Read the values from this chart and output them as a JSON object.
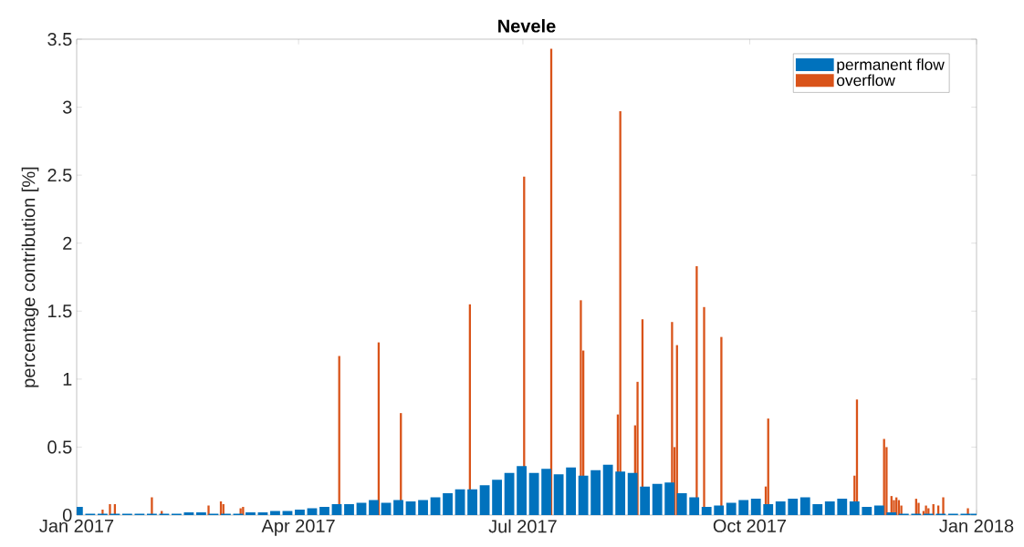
{
  "chart_data": {
    "type": "bar",
    "title": "Nevele",
    "ylabel": "percentage contribution [%]",
    "xlim": [
      "2017-01-01",
      "2018-01-01"
    ],
    "xticks": [
      {
        "value": "2017-01-01",
        "label": "Jan 2017"
      },
      {
        "value": "2017-04-01",
        "label": "Apr 2017"
      },
      {
        "value": "2017-07-01",
        "label": "Jul 2017"
      },
      {
        "value": "2017-10-01",
        "label": "Oct 2017"
      },
      {
        "value": "2018-01-01",
        "label": "Jan 2018"
      }
    ],
    "ylim": [
      0,
      3.5
    ],
    "yticks": [
      0,
      0.5,
      1,
      1.5,
      2,
      2.5,
      3,
      3.5
    ],
    "legend": "top right",
    "grid": false,
    "series": [
      {
        "name": "permanent flow",
        "color": "#0072bd",
        "x": [
          "2017-01-01",
          "2017-01-06",
          "2017-01-11",
          "2017-01-16",
          "2017-01-21",
          "2017-01-26",
          "2017-01-31",
          "2017-02-05",
          "2017-02-10",
          "2017-02-15",
          "2017-02-20",
          "2017-02-25",
          "2017-03-02",
          "2017-03-07",
          "2017-03-12",
          "2017-03-17",
          "2017-03-22",
          "2017-03-27",
          "2017-04-01",
          "2017-04-06",
          "2017-04-11",
          "2017-04-16",
          "2017-04-21",
          "2017-04-26",
          "2017-05-01",
          "2017-05-06",
          "2017-05-11",
          "2017-05-16",
          "2017-05-21",
          "2017-05-26",
          "2017-05-31",
          "2017-06-05",
          "2017-06-10",
          "2017-06-15",
          "2017-06-20",
          "2017-06-25",
          "2017-06-30",
          "2017-07-05",
          "2017-07-10",
          "2017-07-15",
          "2017-07-20",
          "2017-07-25",
          "2017-07-30",
          "2017-08-04",
          "2017-08-09",
          "2017-08-14",
          "2017-08-19",
          "2017-08-24",
          "2017-08-29",
          "2017-09-03",
          "2017-09-08",
          "2017-09-13",
          "2017-09-18",
          "2017-09-23",
          "2017-09-28",
          "2017-10-03",
          "2017-10-08",
          "2017-10-13",
          "2017-10-18",
          "2017-10-23",
          "2017-10-28",
          "2017-11-02",
          "2017-11-07",
          "2017-11-12",
          "2017-11-17",
          "2017-11-22",
          "2017-11-27",
          "2017-12-02",
          "2017-12-07",
          "2017-12-12",
          "2017-12-17",
          "2017-12-22",
          "2017-12-27",
          "2017-12-31"
        ],
        "values": [
          0.06,
          0.01,
          0.01,
          0.01,
          0.01,
          0.01,
          0.01,
          0.01,
          0.01,
          0.02,
          0.02,
          0.01,
          0.01,
          0.01,
          0.02,
          0.02,
          0.03,
          0.03,
          0.04,
          0.05,
          0.06,
          0.08,
          0.08,
          0.09,
          0.11,
          0.09,
          0.11,
          0.1,
          0.11,
          0.13,
          0.16,
          0.19,
          0.19,
          0.22,
          0.26,
          0.31,
          0.36,
          0.31,
          0.34,
          0.3,
          0.35,
          0.29,
          0.33,
          0.37,
          0.32,
          0.31,
          0.21,
          0.23,
          0.24,
          0.16,
          0.13,
          0.06,
          0.07,
          0.09,
          0.11,
          0.12,
          0.08,
          0.1,
          0.12,
          0.13,
          0.08,
          0.1,
          0.12,
          0.1,
          0.06,
          0.07,
          0.02,
          0.01,
          0.01,
          0.01,
          0.01,
          0.01,
          0.01,
          0.01
        ]
      },
      {
        "name": "overflow",
        "color": "#d95319",
        "x": [
          "2017-01-11",
          "2017-01-14",
          "2017-01-16",
          "2017-01-31",
          "2017-02-04",
          "2017-02-23",
          "2017-02-28",
          "2017-03-01",
          "2017-03-08",
          "2017-03-09",
          "2017-04-17",
          "2017-05-03",
          "2017-05-12",
          "2017-06-09",
          "2017-07-01",
          "2017-07-12",
          "2017-07-24",
          "2017-07-25",
          "2017-08-08",
          "2017-08-09",
          "2017-08-15",
          "2017-08-16",
          "2017-08-18",
          "2017-08-30",
          "2017-08-31",
          "2017-09-01",
          "2017-09-09",
          "2017-09-12",
          "2017-09-19",
          "2017-10-07",
          "2017-10-08",
          "2017-11-12",
          "2017-11-13",
          "2017-11-24",
          "2017-11-25",
          "2017-11-27",
          "2017-11-28",
          "2017-11-29",
          "2017-11-30",
          "2017-12-01",
          "2017-12-07",
          "2017-12-08",
          "2017-12-10",
          "2017-12-11",
          "2017-12-12",
          "2017-12-14",
          "2017-12-16",
          "2017-12-18",
          "2017-12-28"
        ],
        "values": [
          0.04,
          0.08,
          0.08,
          0.13,
          0.03,
          0.07,
          0.1,
          0.08,
          0.05,
          0.06,
          1.17,
          1.27,
          0.75,
          1.55,
          2.49,
          3.43,
          1.58,
          1.21,
          0.74,
          2.97,
          0.66,
          0.98,
          1.44,
          1.42,
          0.5,
          1.25,
          1.83,
          1.53,
          1.31,
          0.21,
          0.71,
          0.29,
          0.85,
          0.56,
          0.5,
          0.14,
          0.11,
          0.13,
          0.11,
          0.07,
          0.12,
          0.09,
          0.03,
          0.07,
          0.05,
          0.08,
          0.07,
          0.13,
          0.05
        ]
      }
    ]
  }
}
